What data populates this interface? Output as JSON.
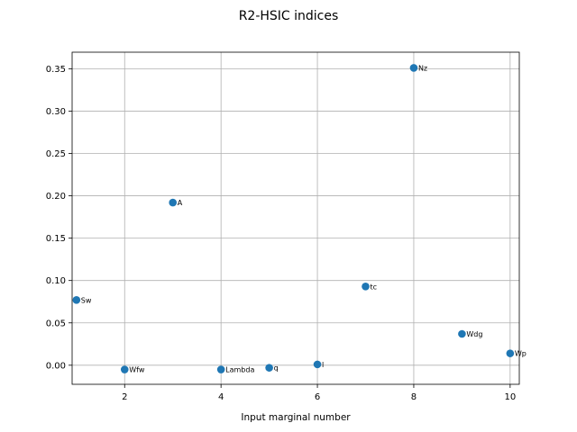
{
  "chart_data": {
    "type": "scatter",
    "title": "R2-HSIC indices",
    "xlabel": "Input marginal number",
    "ylabel": "",
    "xlim": [
      0.91,
      10.19
    ],
    "ylim": [
      -0.0225,
      0.3695
    ],
    "grid": true,
    "marker_color": "#1f77b4",
    "xticks": [
      2,
      4,
      6,
      8,
      10
    ],
    "xtick_labels": [
      "2",
      "4",
      "6",
      "8",
      "10"
    ],
    "yticks": [
      0.0,
      0.05,
      0.1,
      0.15,
      0.2,
      0.25,
      0.3,
      0.35
    ],
    "ytick_labels": [
      "0.00",
      "0.05",
      "0.10",
      "0.15",
      "0.20",
      "0.25",
      "0.30",
      "0.35"
    ],
    "points": [
      {
        "x": 1,
        "y": 0.077,
        "label": "Sw"
      },
      {
        "x": 2,
        "y": -0.005,
        "label": "Wfw"
      },
      {
        "x": 3,
        "y": 0.192,
        "label": "A"
      },
      {
        "x": 4,
        "y": -0.005,
        "label": "Lambda"
      },
      {
        "x": 5,
        "y": -0.003,
        "label": "q"
      },
      {
        "x": 6,
        "y": 0.001,
        "label": "l"
      },
      {
        "x": 7,
        "y": 0.093,
        "label": "tc"
      },
      {
        "x": 8,
        "y": 0.351,
        "label": "Nz"
      },
      {
        "x": 9,
        "y": 0.037,
        "label": "Wdg"
      },
      {
        "x": 10,
        "y": 0.014,
        "label": "Wp"
      }
    ]
  }
}
